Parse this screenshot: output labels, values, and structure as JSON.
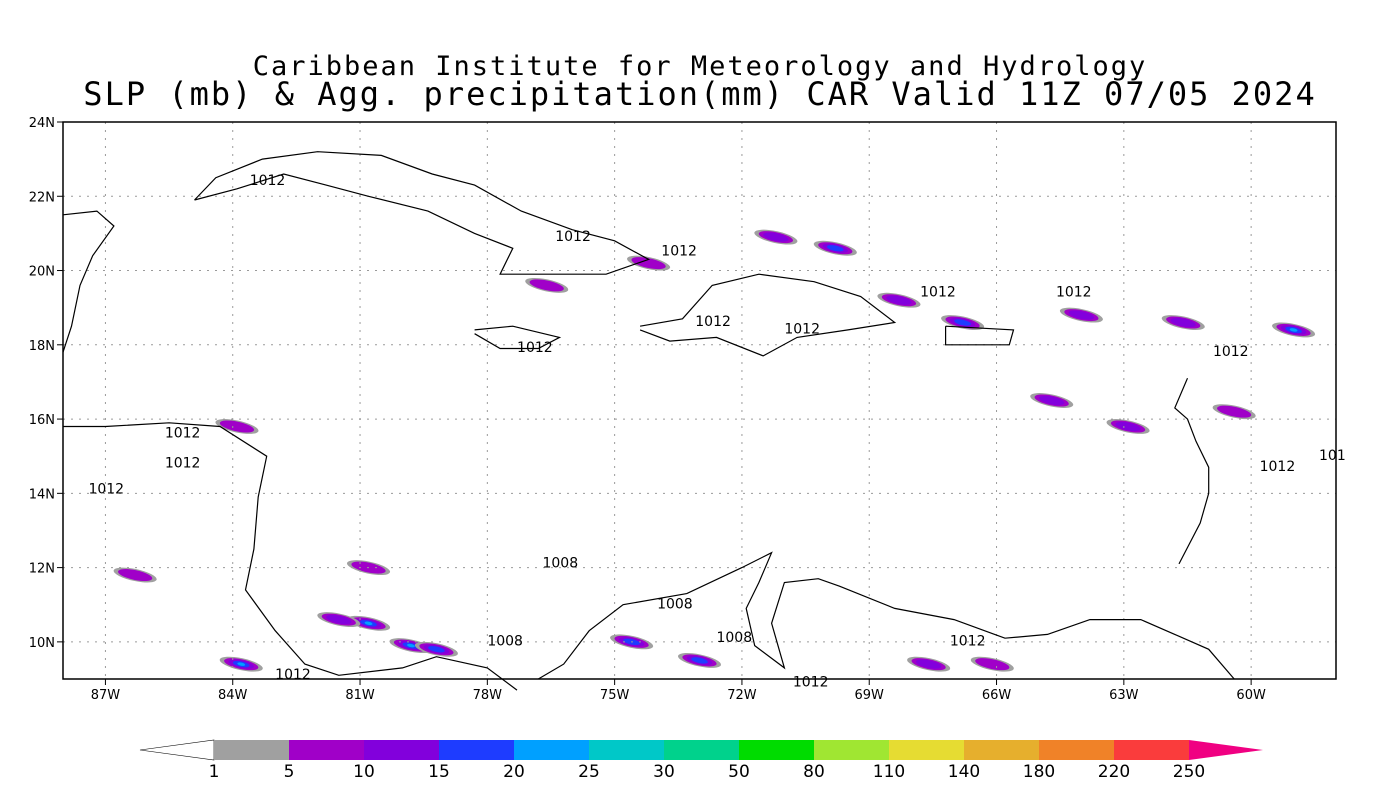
{
  "title": {
    "line1": "Caribbean Institute for Meteorology and Hydrology",
    "line2": "SLP (mb) & Agg. precipitation(mm) CAR Valid 11Z 07/05 2024"
  },
  "map": {
    "lon_range": [
      -88,
      -58
    ],
    "lat_range": [
      9,
      24
    ],
    "lat_ticks": [
      {
        "value": 24,
        "label": "24N"
      },
      {
        "value": 22,
        "label": "22N"
      },
      {
        "value": 20,
        "label": "20N"
      },
      {
        "value": 18,
        "label": "18N"
      },
      {
        "value": 16,
        "label": "16N"
      },
      {
        "value": 14,
        "label": "14N"
      },
      {
        "value": 12,
        "label": "12N"
      },
      {
        "value": 10,
        "label": "10N"
      }
    ],
    "lon_ticks": [
      {
        "value": -87,
        "label": "87W"
      },
      {
        "value": -84,
        "label": "84W"
      },
      {
        "value": -81,
        "label": "81W"
      },
      {
        "value": -78,
        "label": "78W"
      },
      {
        "value": -75,
        "label": "75W"
      },
      {
        "value": -72,
        "label": "72W"
      },
      {
        "value": -69,
        "label": "69W"
      },
      {
        "value": -66,
        "label": "66W"
      },
      {
        "value": -63,
        "label": "63W"
      },
      {
        "value": -60,
        "label": "60W"
      }
    ],
    "grid": "dotted",
    "isobar_labels": [
      {
        "text": "1012",
        "lon": -83.6,
        "lat": 22.3
      },
      {
        "text": "1012",
        "lon": -76.4,
        "lat": 20.8
      },
      {
        "text": "1012",
        "lon": -73.9,
        "lat": 20.4
      },
      {
        "text": "1012",
        "lon": -67.8,
        "lat": 19.3
      },
      {
        "text": "1012",
        "lon": -64.6,
        "lat": 19.3
      },
      {
        "text": "1012",
        "lon": -73.1,
        "lat": 18.5
      },
      {
        "text": "1012",
        "lon": -71.0,
        "lat": 18.3
      },
      {
        "text": "1012",
        "lon": -77.3,
        "lat": 17.8
      },
      {
        "text": "1012",
        "lon": -60.9,
        "lat": 17.7
      },
      {
        "text": "1012",
        "lon": -85.6,
        "lat": 15.5
      },
      {
        "text": "1012",
        "lon": -85.6,
        "lat": 14.7
      },
      {
        "text": "1012",
        "lon": -87.4,
        "lat": 14.0
      },
      {
        "text": "1012",
        "lon": -59.8,
        "lat": 14.6
      },
      {
        "text": "101",
        "lon": -58.4,
        "lat": 14.9
      },
      {
        "text": "1008",
        "lon": -76.7,
        "lat": 12.0
      },
      {
        "text": "1008",
        "lon": -74.0,
        "lat": 10.9
      },
      {
        "text": "1008",
        "lon": -72.6,
        "lat": 10.0
      },
      {
        "text": "1008",
        "lon": -78.0,
        "lat": 9.9
      },
      {
        "text": "1012",
        "lon": -83.0,
        "lat": 9.0
      },
      {
        "text": "1012",
        "lon": -70.8,
        "lat": 8.8
      },
      {
        "text": "1012",
        "lon": -67.1,
        "lat": 9.9
      }
    ],
    "precip_cells": [
      {
        "lon": -68.3,
        "lat": 19.2,
        "level": 2
      },
      {
        "lon": -69.8,
        "lat": 20.6,
        "level": 3
      },
      {
        "lon": -71.2,
        "lat": 20.9,
        "level": 2
      },
      {
        "lon": -66.8,
        "lat": 18.6,
        "level": 3
      },
      {
        "lon": -64.0,
        "lat": 18.8,
        "level": 2
      },
      {
        "lon": -61.6,
        "lat": 18.6,
        "level": 2
      },
      {
        "lon": -59.0,
        "lat": 18.4,
        "level": 4
      },
      {
        "lon": -64.7,
        "lat": 16.5,
        "level": 2
      },
      {
        "lon": -62.9,
        "lat": 15.8,
        "level": 2
      },
      {
        "lon": -60.4,
        "lat": 16.2,
        "level": 1
      },
      {
        "lon": -80.8,
        "lat": 10.5,
        "level": 4
      },
      {
        "lon": -79.8,
        "lat": 9.9,
        "level": 4
      },
      {
        "lon": -79.2,
        "lat": 9.8,
        "level": 3
      },
      {
        "lon": -83.8,
        "lat": 9.4,
        "level": 4
      },
      {
        "lon": -81.5,
        "lat": 10.6,
        "level": 2
      },
      {
        "lon": -74.6,
        "lat": 10.0,
        "level": 3
      },
      {
        "lon": -73.0,
        "lat": 9.5,
        "level": 3
      },
      {
        "lon": -67.6,
        "lat": 9.4,
        "level": 2
      },
      {
        "lon": -66.1,
        "lat": 9.4,
        "level": 1
      },
      {
        "lon": -80.8,
        "lat": 12.0,
        "level": 1
      },
      {
        "lon": -86.3,
        "lat": 11.8,
        "level": 1
      },
      {
        "lon": -83.9,
        "lat": 15.8,
        "level": 1
      },
      {
        "lon": -76.6,
        "lat": 19.6,
        "level": 1
      },
      {
        "lon": -74.2,
        "lat": 20.2,
        "level": 1
      }
    ]
  },
  "colorbar": {
    "labels": [
      "1",
      "5",
      "10",
      "15",
      "20",
      "25",
      "30",
      "50",
      "80",
      "110",
      "140",
      "180",
      "220",
      "250"
    ],
    "colors": [
      "#a0a0a0",
      "#a000c8",
      "#8200dc",
      "#1e3cff",
      "#00a0ff",
      "#00c8c8",
      "#00d28c",
      "#00dc00",
      "#a0e632",
      "#e6dc32",
      "#e6af2d",
      "#f08228",
      "#fa3c3c",
      "#f00082"
    ],
    "low_color": "#ffffff"
  }
}
